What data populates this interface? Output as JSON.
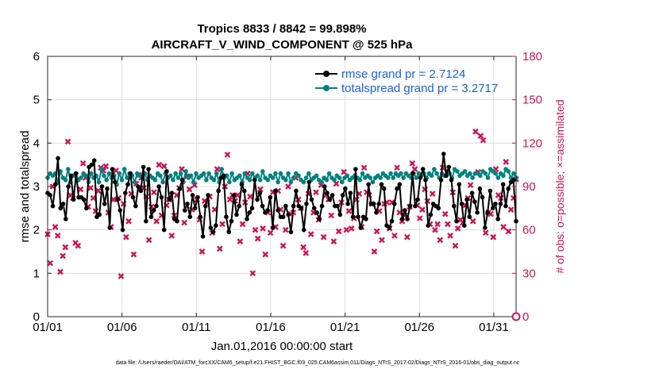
{
  "chart_data": {
    "type": "line",
    "title": "Tropics 8833 / 8842 = 99.898%",
    "subtitle": "AIRCRAFT_V_WIND_COMPONENT @ 525 hPa",
    "xlabel": "Jan.01,2016 00:00:00 start",
    "ylabel": "rmse and totalspread",
    "ylabel_right": "# of obs: o=possible; ×=assimilated",
    "xlim": [
      0,
      31.5
    ],
    "ylim": [
      0,
      6
    ],
    "ylim_right": [
      0,
      180
    ],
    "x_ticks": [
      0,
      5,
      10,
      15,
      20,
      25,
      30
    ],
    "x_tick_labels": [
      "01/01",
      "01/06",
      "01/11",
      "01/16",
      "01/21",
      "01/26",
      "01/31"
    ],
    "y_ticks": [
      0,
      1,
      2,
      3,
      4,
      5,
      6
    ],
    "y_tick_labels": [
      "0",
      "1",
      "2",
      "3",
      "4",
      "5",
      "6"
    ],
    "y_right_ticks": [
      0,
      30,
      60,
      90,
      120,
      150,
      180
    ],
    "y_right_tick_labels": [
      "0",
      "30",
      "60",
      "90",
      "120",
      "150",
      "180"
    ],
    "legend_position": "top-right",
    "footnote": "data file: /Users/raeder/DAI/ATM_forcXX/CAM6_setup/f.e21.FHIST_BGC.f09_025.CAM6assim.011/Diags_NTrS_2017-02/Diags_NTrS_2016-01/obs_diag_output.nc",
    "series": [
      {
        "name": "rmse grand pr = 2.7124",
        "color": "#000000",
        "marker": "circle",
        "axis": "left",
        "values": [
          2.85,
          2.8,
          2.55,
          3.05,
          3.65,
          2.5,
          2.6,
          2.25,
          3.0,
          3.25,
          2.7,
          3.3,
          2.75,
          2.75,
          2.7,
          2.5,
          3.45,
          3.5,
          3.6,
          2.3,
          2.35,
          3.0,
          2.6,
          2.95,
          2.05,
          3.4,
          3.1,
          2.7,
          2.45,
          2.0,
          2.85,
          3.05,
          3.3,
          2.75,
          2.55,
          3.0,
          2.9,
          3.45,
          2.2,
          3.4,
          2.3,
          2.45,
          2.55,
          3.0,
          2.75,
          2.0,
          3.35,
          2.7,
          2.85,
          2.25,
          2.2,
          2.95,
          3.15,
          2.45,
          2.6,
          2.3,
          2.8,
          2.5,
          2.75,
          2.3,
          1.85,
          2.55,
          2.8,
          2.05,
          1.95,
          2.1,
          2.9,
          3.2,
          3.25,
          2.3,
          1.95,
          2.2,
          2.8,
          2.35,
          2.55,
          3.05,
          2.9,
          2.25,
          2.4,
          2.5,
          3.15,
          2.7,
          2.85,
          2.55,
          2.4,
          2.45,
          2.75,
          2.05,
          2.9,
          2.45,
          2.3,
          2.3,
          2.55,
          2.35,
          1.95,
          2.55,
          2.9,
          2.55,
          2.5,
          2.0,
          2.6,
          3.1,
          2.7,
          2.5,
          2.4,
          2.25,
          2.55,
          3.0,
          2.85,
          2.7,
          2.8,
          2.55,
          2.55,
          2.35,
          2.8,
          2.95,
          2.6,
          2.85,
          2.3,
          3.4,
          2.3,
          2.05,
          2.3,
          2.25,
          3.05,
          2.6,
          2.6,
          2.4,
          2.6,
          3.05,
          2.95,
          2.1,
          2.05,
          2.2,
          2.6,
          2.95,
          3.05,
          2.25,
          2.45,
          2.25,
          2.55,
          3.3,
          2.55,
          2.7,
          3.2,
          3.4,
          3.15,
          2.1,
          2.35,
          2.6,
          2.55,
          2.5,
          3.15,
          3.75,
          3.25,
          3.45,
          3.15,
          2.55,
          2.2,
          3.05,
          2.6,
          2.1,
          2.7,
          2.3,
          2.85,
          2.65,
          2.4,
          2.95,
          2.75,
          2.05,
          2.4,
          2.9,
          2.5,
          2.6,
          2.25,
          2.6,
          3.05,
          2.55,
          2.95,
          3.1,
          3.15,
          2.2
        ]
      },
      {
        "name": "totalspread grand pr = 3.2717",
        "color": "#00827f",
        "marker": "circle",
        "axis": "left",
        "values": [
          3.2,
          3.3,
          3.25,
          3.3,
          3.1,
          3.35,
          3.2,
          3.15,
          3.4,
          3.1,
          3.25,
          3.3,
          3.15,
          3.2,
          3.3,
          3.25,
          3.1,
          3.3,
          3.2,
          3.25,
          3.1,
          3.4,
          3.25,
          3.15,
          3.3,
          3.2,
          3.25,
          3.05,
          3.3,
          3.15,
          3.4,
          3.2,
          3.3,
          3.25,
          3.1,
          3.3,
          3.25,
          3.2,
          3.3,
          3.15,
          3.25,
          3.2,
          3.15,
          3.3,
          3.25,
          3.1,
          3.3,
          3.2,
          3.25,
          3.15,
          3.3,
          3.2,
          3.3,
          3.1,
          3.35,
          3.2,
          3.25,
          3.1,
          3.3,
          3.2,
          3.25,
          3.3,
          3.15,
          3.3,
          3.2,
          3.15,
          3.3,
          3.1,
          3.4,
          3.2,
          3.25,
          3.1,
          3.3,
          3.15,
          3.2,
          3.25,
          3.1,
          3.3,
          3.2,
          3.15,
          3.3,
          3.2,
          3.25,
          3.15,
          3.35,
          3.2,
          3.15,
          3.25,
          3.2,
          3.3,
          3.1,
          3.3,
          3.2,
          3.15,
          3.3,
          3.1,
          3.2,
          3.3,
          3.25,
          3.15,
          3.1,
          3.2,
          3.3,
          3.15,
          3.2,
          3.25,
          3.15,
          3.1,
          3.2,
          3.15,
          3.3,
          3.2,
          3.15,
          3.25,
          3.2,
          3.1,
          3.2,
          3.25,
          3.15,
          3.2,
          3.25,
          3.2,
          3.15,
          3.3,
          3.2,
          3.25,
          3.2,
          3.1,
          3.2,
          3.25,
          3.2,
          3.3,
          3.25,
          3.2,
          3.3,
          3.2,
          3.3,
          3.25,
          3.3,
          3.2,
          3.3,
          3.25,
          3.2,
          3.3,
          3.2,
          3.3,
          3.25,
          3.3,
          3.2,
          3.3,
          3.25,
          3.4,
          3.3,
          3.2,
          3.3,
          3.25,
          3.35,
          3.3,
          3.2,
          3.4,
          3.35,
          3.25,
          3.3,
          3.35,
          3.25,
          3.3,
          3.2,
          3.3,
          3.3,
          3.25,
          3.35,
          3.3,
          3.2,
          3.4,
          3.35,
          3.3,
          3.2,
          3.3,
          3.25,
          3.4,
          3.35,
          3.2,
          3.3,
          3.2
        ]
      },
      {
        "name": "# of obs assimilated",
        "color": "#cc1456",
        "marker": "x",
        "axis": "right",
        "values": [
          57,
          37,
          90,
          62,
          56,
          31,
          42,
          48,
          121,
          84,
          82,
          51,
          49,
          88,
          106,
          96,
          76,
          89,
          82,
          73,
          87,
          103,
          101,
          104,
          72,
          62,
          81,
          101,
          82,
          28,
          78,
          55,
          66,
          85,
          43,
          92,
          98,
          96,
          89,
          83,
          53,
          76,
          86,
          66,
          105,
          70,
          104,
          77,
          81,
          56,
          70,
          84,
          89,
          102,
          65,
          97,
          88,
          74,
          91,
          81,
          67,
          45,
          80,
          79,
          83,
          58,
          74,
          102,
          47,
          64,
          90,
          112,
          81,
          84,
          80,
          84,
          52,
          64,
          79,
          99,
          83,
          30,
          60,
          54,
          88,
          61,
          43,
          72,
          58,
          86,
          62,
          87,
          74,
          49,
          60,
          90,
          71,
          72,
          96,
          81,
          75,
          48,
          44,
          85,
          57,
          72,
          86,
          67,
          91,
          55,
          84,
          81,
          70,
          52,
          92,
          59,
          79,
          100,
          60,
          73,
          61,
          68,
          81,
          85,
          62,
          103,
          86,
          84,
          78,
          45,
          59,
          73,
          53,
          78,
          79,
          61,
          79,
          56,
          103,
          72,
          66,
          70,
          55,
          76,
          106,
          102,
          77,
          68,
          74,
          88,
          80,
          64,
          85,
          60,
          64,
          53,
          103,
          71,
          64,
          56,
          86,
          49,
          61,
          67,
          65,
          77,
          82,
          91,
          66,
          128,
          100,
          125,
          122,
          58,
          72,
          71,
          55,
          102,
          84,
          82,
          62,
          107,
          59,
          74,
          82,
          95
        ]
      }
    ]
  }
}
